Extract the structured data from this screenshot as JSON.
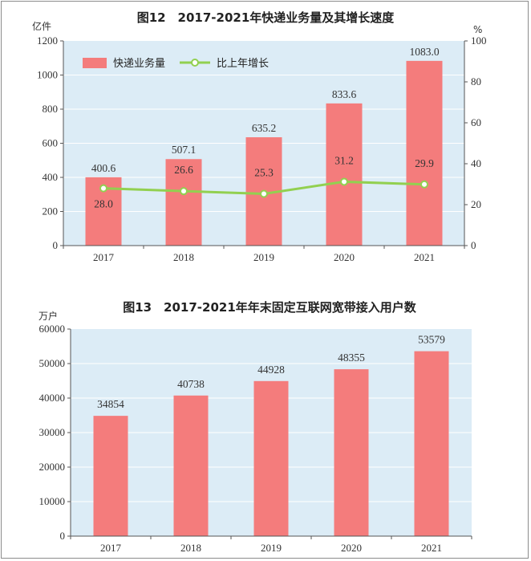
{
  "chart_data": [
    {
      "type": "bar",
      "title": "图12　2017-2021年快递业务量及其增长速度",
      "categories": [
        "2017",
        "2018",
        "2019",
        "2020",
        "2021"
      ],
      "ylabel": "亿件",
      "y2label": "%",
      "ylim": [
        0,
        1200
      ],
      "y2lim": [
        0,
        100
      ],
      "yticks": [
        0,
        200,
        400,
        600,
        800,
        1000,
        1200
      ],
      "y2ticks": [
        0,
        20,
        40,
        60,
        80,
        100
      ],
      "legend_position": "top-left",
      "series": [
        {
          "name": "快递业务量",
          "type": "bar",
          "axis": "left",
          "color": "#f47c7c",
          "values": [
            400.6,
            507.1,
            635.2,
            833.6,
            1083.0
          ],
          "labels": [
            "400.6",
            "507.1",
            "635.2",
            "833.6",
            "1083.0"
          ]
        },
        {
          "name": "比上年增长",
          "type": "line",
          "axis": "right",
          "color": "#92d050",
          "values": [
            28.0,
            26.6,
            25.3,
            31.2,
            29.9
          ],
          "labels": [
            "28.0",
            "26.6",
            "25.3",
            "31.2",
            "29.9"
          ]
        }
      ]
    },
    {
      "type": "bar",
      "title": "图13　2017-2021年年末固定互联网宽带接入用户数",
      "categories": [
        "2017",
        "2018",
        "2019",
        "2020",
        "2021"
      ],
      "ylabel": "万户",
      "ylim": [
        0,
        60000
      ],
      "yticks": [
        0,
        10000,
        20000,
        30000,
        40000,
        50000,
        60000
      ],
      "series": [
        {
          "type": "bar",
          "color": "#f47c7c",
          "values": [
            34854,
            40738,
            44928,
            48355,
            53579
          ],
          "labels": [
            "34854",
            "40738",
            "44928",
            "48355",
            "53579"
          ]
        }
      ]
    }
  ]
}
